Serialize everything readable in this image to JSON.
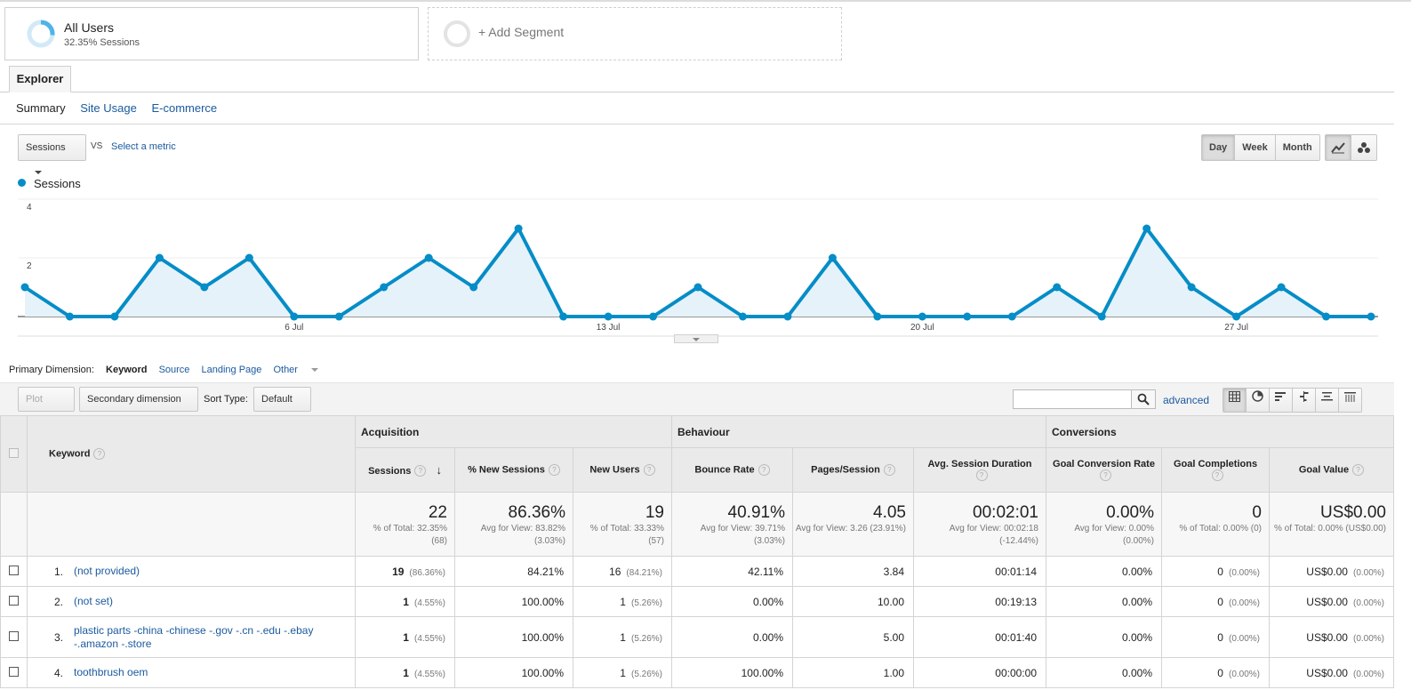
{
  "segments": {
    "all_users_title": "All Users",
    "all_users_sub": "32.35% Sessions",
    "add_segment": "+ Add Segment"
  },
  "tabs": {
    "explorer": "Explorer",
    "summary": "Summary",
    "site_usage": "Site Usage",
    "ecommerce": "E-commerce"
  },
  "chart_controls": {
    "metric": "Sessions",
    "vs": "VS",
    "select_metric": "Select a metric",
    "day": "Day",
    "week": "Week",
    "month": "Month"
  },
  "chart_data": {
    "type": "line",
    "series": [
      {
        "name": "Sessions",
        "values": [
          1,
          0,
          0,
          2,
          1,
          2,
          0,
          0,
          1,
          2,
          1,
          3,
          0,
          0,
          0,
          1,
          0,
          0,
          2,
          0,
          0,
          0,
          0,
          1,
          0,
          3,
          1,
          0,
          1,
          0,
          0
        ]
      }
    ],
    "x_tick_labels": [
      "6 Jul",
      "13 Jul",
      "20 Jul",
      "27 Jul"
    ],
    "x_tick_index": [
      6,
      13,
      20,
      27
    ],
    "y_ticks": [
      "2",
      "4"
    ],
    "ylim": [
      0,
      4
    ],
    "color": "#058dc7"
  },
  "dimension": {
    "label": "Primary Dimension:",
    "keyword": "Keyword",
    "source": "Source",
    "landing": "Landing Page",
    "other": "Other"
  },
  "toolbar": {
    "plot_rows": "Plot Rows",
    "secondary": "Secondary dimension",
    "sort_type": "Sort Type:",
    "sort_default": "Default",
    "advanced": "advanced"
  },
  "table": {
    "groups": {
      "acquisition": "Acquisition",
      "behaviour": "Behaviour",
      "conversions": "Conversions"
    },
    "cols": {
      "keyword": "Keyword",
      "sessions": "Sessions",
      "new_sessions": "% New Sessions",
      "new_users": "New Users",
      "bounce": "Bounce Rate",
      "pages": "Pages/Session",
      "duration": "Avg. Session Duration",
      "goal_rate": "Goal Conversion Rate",
      "goal_comp": "Goal Completions",
      "goal_value": "Goal Value"
    },
    "totals": {
      "sessions": "22",
      "sessions_sub": "% of Total: 32.35% (68)",
      "new_sessions": "86.36%",
      "new_sessions_sub": "Avg for View: 83.82% (3.03%)",
      "new_users": "19",
      "new_users_sub": "% of Total: 33.33% (57)",
      "bounce": "40.91%",
      "bounce_sub": "Avg for View: 39.71% (3.03%)",
      "pages": "4.05",
      "pages_sub": "Avg for View: 3.26 (23.91%)",
      "duration": "00:02:01",
      "duration_sub": "Avg for View: 00:02:18 (-12.44%)",
      "goal_rate": "0.00%",
      "goal_rate_sub": "Avg for View: 0.00% (0.00%)",
      "goal_comp": "0",
      "goal_comp_sub": "% of Total: 0.00% (0)",
      "goal_value": "US$0.00",
      "goal_value_sub": "% of Total: 0.00% (US$0.00)"
    },
    "rows": [
      {
        "idx": "1.",
        "keyword": "(not provided)",
        "sessions": "19",
        "sessions_pct": "(86.36%)",
        "new_sessions": "84.21%",
        "new_users": "16",
        "new_users_pct": "(84.21%)",
        "bounce": "42.11%",
        "pages": "3.84",
        "duration": "00:01:14",
        "goal_rate": "0.00%",
        "goal_comp": "0",
        "goal_comp_pct": "(0.00%)",
        "goal_value": "US$0.00",
        "goal_value_pct": "(0.00%)"
      },
      {
        "idx": "2.",
        "keyword": "(not set)",
        "sessions": "1",
        "sessions_pct": "(4.55%)",
        "new_sessions": "100.00%",
        "new_users": "1",
        "new_users_pct": "(5.26%)",
        "bounce": "0.00%",
        "pages": "10.00",
        "duration": "00:19:13",
        "goal_rate": "0.00%",
        "goal_comp": "0",
        "goal_comp_pct": "(0.00%)",
        "goal_value": "US$0.00",
        "goal_value_pct": "(0.00%)"
      },
      {
        "idx": "3.",
        "keyword": "plastic parts -china -chinese -.gov -.cn -.edu -.ebay -.amazon -.store",
        "sessions": "1",
        "sessions_pct": "(4.55%)",
        "new_sessions": "100.00%",
        "new_users": "1",
        "new_users_pct": "(5.26%)",
        "bounce": "0.00%",
        "pages": "5.00",
        "duration": "00:01:40",
        "goal_rate": "0.00%",
        "goal_comp": "0",
        "goal_comp_pct": "(0.00%)",
        "goal_value": "US$0.00",
        "goal_value_pct": "(0.00%)"
      },
      {
        "idx": "4.",
        "keyword": "toothbrush oem",
        "sessions": "1",
        "sessions_pct": "(4.55%)",
        "new_sessions": "100.00%",
        "new_users": "1",
        "new_users_pct": "(5.26%)",
        "bounce": "100.00%",
        "pages": "1.00",
        "duration": "00:00:00",
        "goal_rate": "0.00%",
        "goal_comp": "0",
        "goal_comp_pct": "(0.00%)",
        "goal_value": "US$0.00",
        "goal_value_pct": "(0.00%)"
      }
    ]
  }
}
